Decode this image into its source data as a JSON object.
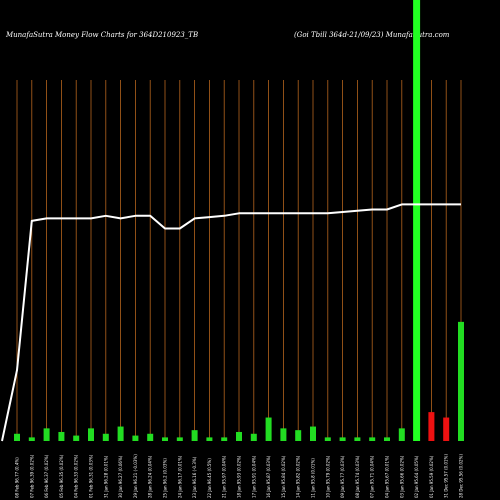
{
  "chart_data": {
    "type": "bar",
    "title_left": "MunafaSutra  Money Flow  Charts for 364D210923_TB",
    "title_right": "(Goi   Tbill 364d-21/09/23) MunafaSutra.com",
    "categories": [
      "Fri 08 Feb 2023",
      "Thu 07 Feb 2023",
      "Wed 06 Feb 2023",
      "Tue 05 Feb 2023",
      "Mon 04 Feb 2023",
      "Fri 01 Feb 2023",
      "Thu 31 Jan 2023",
      "Wed 30 Jan 2023",
      "Tue 29 Jan 2023",
      "Mon 28 Jan 2023",
      "Fri 25 Jan 2023",
      "Thu 24 Jan 2023",
      "Wed 23 Jan 2023",
      "Tue 22 Jan 2023",
      "Mon 21 Jan 2023",
      "Fri 18 Jan 2023",
      "Thu 17 Jan 2023",
      "Wed 16 Jan 2023",
      "Tue 15 Jan 2023",
      "Mon 14 Jan 2023",
      "Fri 11 Jan 2023",
      "Thu 10 Jan 2023",
      "Wed 09 Jan 2023",
      "Tue 08 Jan 2023",
      "Mon 07 Jan 2023",
      "Fri 04 Jan 2023",
      "Thu 03 Jan 2023",
      "Wed 02 Jan 2023",
      "Tue 01 Jan 2023",
      "Mon 31 Dec 2022",
      "Fri 28 Dec 2022"
    ],
    "tick_labels": [
      "08 Feb 96.77 (0.4%)",
      "07 Feb 96.39 (0.02%)",
      "06 Feb 96.37 (0.02%)",
      "05 Feb 96.35 (0.02%)",
      "04 Feb 96.33 (0.02%)",
      "01 Feb 96.31 (0.03%)",
      "31 Jan 96.28 (0.01%)",
      "30 Jan 96.27 (0.06%)",
      "29 Jan 96.21 (-0.03%)",
      "28 Jan 96.24 (0.04%)",
      "25 Jan 96.2 (0.03%)",
      "24 Jan 96.17 (0.01%)",
      "23 Jan 96.16 (-0.3%)",
      "22 Jan 96.45 (0.5%)",
      "21 Jan 95.97 (0.04%)",
      "18 Jan 95.93 (0.02%)",
      "17 Jan 95.91 (0.04%)",
      "16 Jan 95.87 (0.03%)",
      "15 Jan 95.84 (0.02%)",
      "14 Jan 95.82 (0.02%)",
      "11 Jan 95.8 (0.01%)",
      "10 Jan 95.79 (0.02%)",
      "09 Jan 95.77 (0.03%)",
      "08 Jan 95.74 (0.03%)",
      "07 Jan 95.71 (0.04%)",
      "04 Jan 95.67 (0.01%)",
      "03 Jan 95.66 (0.02%)",
      "02 Jan 95.64 (0.05%)",
      "01 Jan 95.59 (0.02%)",
      "31 Dec 95.57 (0.01%)",
      "28 Dec 95.56 (0.02%)"
    ],
    "money_flow_values": [
      2,
      1,
      3.5,
      2.5,
      1.5,
      3.5,
      2,
      4,
      1.5,
      2,
      1,
      1,
      3,
      1,
      1,
      2.5,
      2,
      6.5,
      3.5,
      3,
      4,
      1,
      1,
      1,
      1,
      1,
      3.5,
      100,
      8,
      6.5,
      33
    ],
    "bar_colors": [
      "green",
      "green",
      "green",
      "green",
      "green",
      "green",
      "green",
      "green",
      "green",
      "green",
      "green",
      "green",
      "green",
      "green",
      "green",
      "green",
      "green",
      "green",
      "green",
      "green",
      "green",
      "green",
      "green",
      "green",
      "green",
      "green",
      "green",
      "green",
      "red",
      "red",
      "green"
    ],
    "price_line": [
      28,
      87,
      88,
      88,
      88,
      88,
      89,
      88,
      89,
      89,
      84,
      84,
      88,
      88.5,
      89,
      90,
      90,
      90,
      90,
      90,
      90,
      90,
      90.5,
      91,
      91.5,
      91.5,
      93.5,
      93.5,
      93.5,
      93.5,
      93.5
    ],
    "colors": {
      "background": "#000000",
      "bar_up": "#22dd22",
      "bar_down": "#ee1111",
      "bar_highlight": "#22ff22",
      "grid_line": "#b5651d",
      "price_line": "#ffffff"
    }
  }
}
